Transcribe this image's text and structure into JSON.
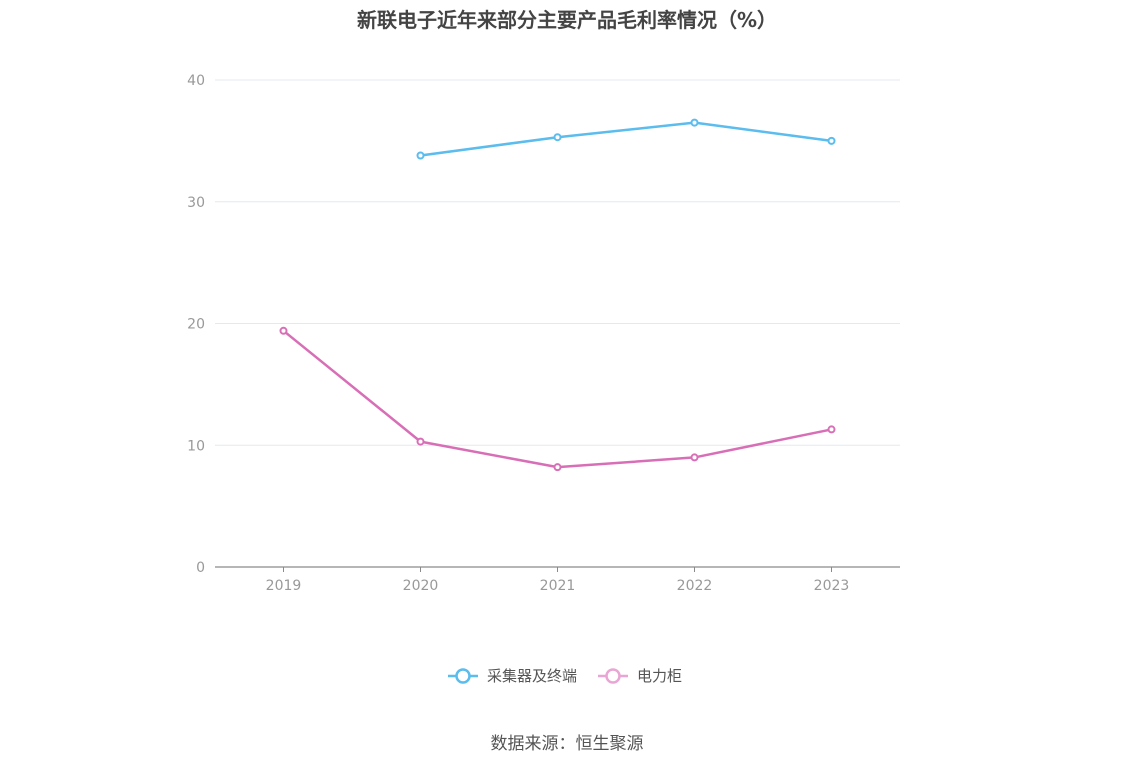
{
  "chart_data": {
    "type": "line",
    "title": "新联电子近年来部分主要产品毛利率情况（%）",
    "categories": [
      "2019",
      "2020",
      "2021",
      "2022",
      "2023"
    ],
    "ylim": [
      0,
      40
    ],
    "yticks": [
      0,
      10,
      20,
      30,
      40
    ],
    "grid": true,
    "legend_position": "bottom-center",
    "series": [
      {
        "name": "采集器及终端",
        "color": "#5bbcee",
        "values": [
          null,
          33.8,
          35.3,
          36.5,
          35.0
        ]
      },
      {
        "name": "电力柜",
        "color": "#d86fb6",
        "values": [
          19.4,
          10.3,
          8.2,
          9.0,
          11.3
        ]
      }
    ]
  },
  "source": "数据来源：恒生聚源"
}
